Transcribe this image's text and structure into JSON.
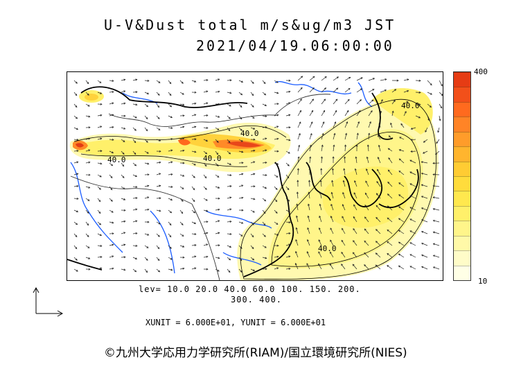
{
  "header": {
    "title": "U-V&Dust total m/s&ug/m3 JST",
    "datetime": "2021/04/19.06:00:00"
  },
  "colorbar": {
    "max_label": "400",
    "min_label": "10",
    "colors": [
      "#ffffe6",
      "#fffcc8",
      "#fff9a8",
      "#fff58a",
      "#fff06a",
      "#ffe84e",
      "#ffdc3c",
      "#ffcc33",
      "#ffb52e",
      "#ff9c2a",
      "#ff8426",
      "#ff6a1e",
      "#f2501a",
      "#e63c14"
    ]
  },
  "contour_labels": [
    "40.0",
    "40.0",
    "40.0",
    "40.0",
    "40.0"
  ],
  "legend": {
    "levels_line1": "lev= 10.0 20.0 40.0 60.0 100. 150. 200.",
    "levels_line2": "300. 400.",
    "units": "XUNIT = 6.000E+01, YUNIT = 6.000E+01"
  },
  "credit": "©九州大学応用力学研究所(RIAM)/国立環境研究所(NIES)"
}
